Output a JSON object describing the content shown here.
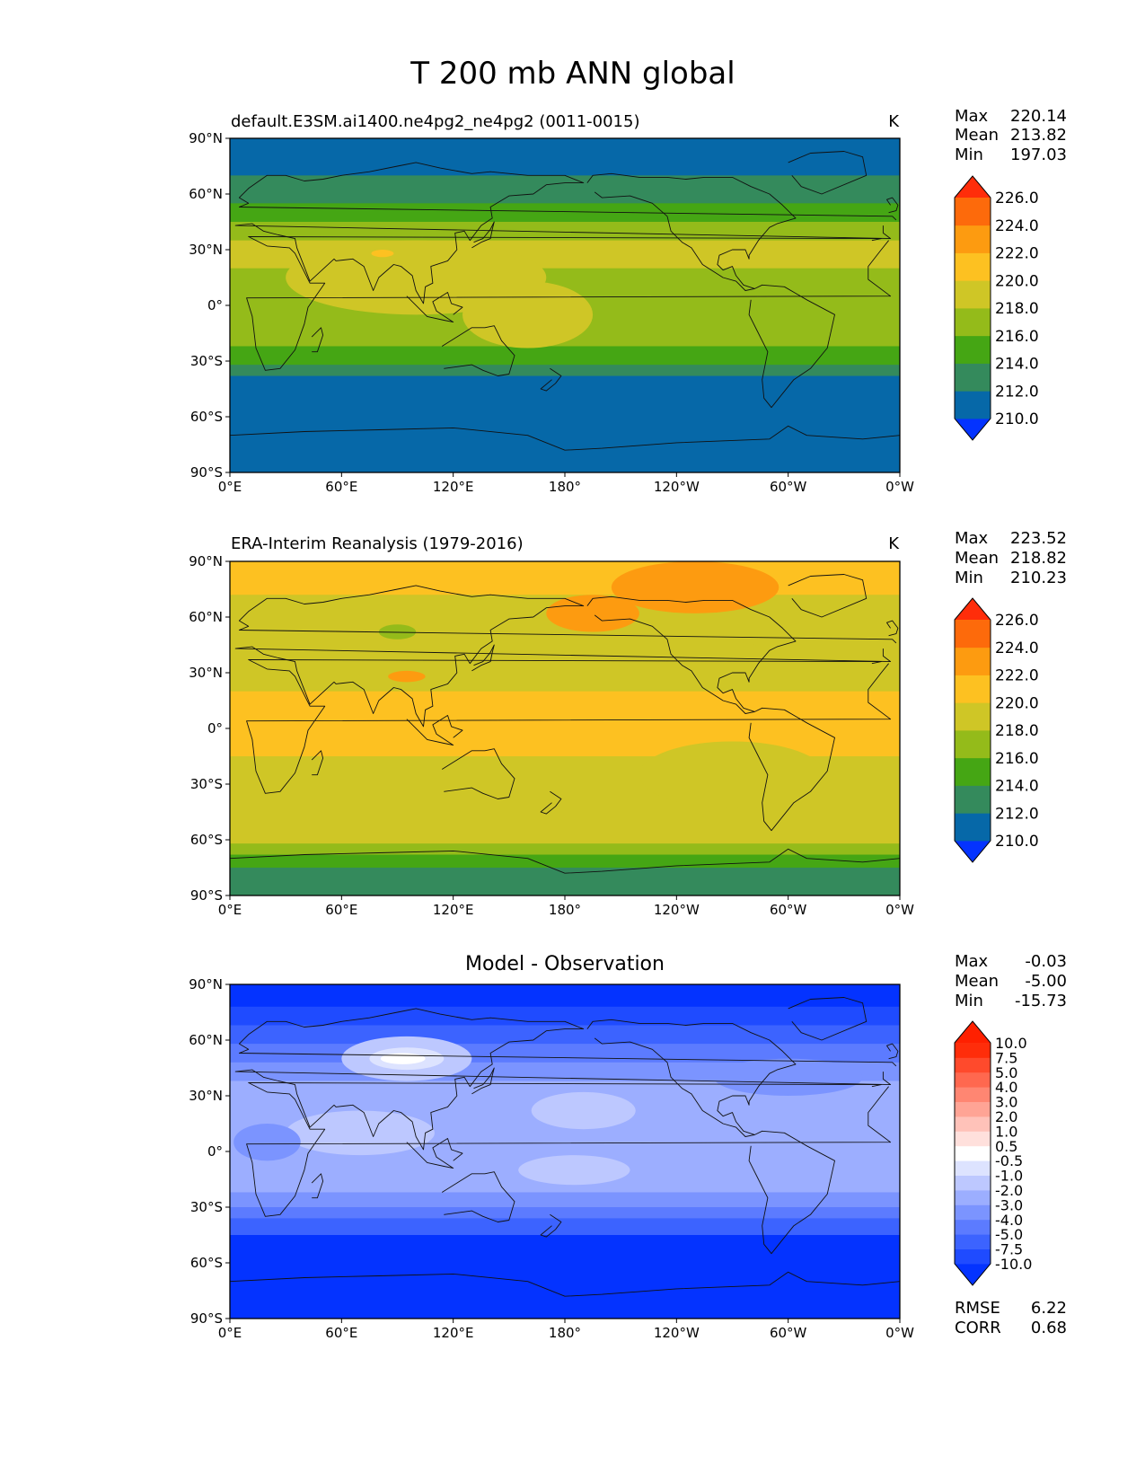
{
  "chart_data": {
    "type": "heatmap",
    "title": "T 200 mb ANN global",
    "x_ticks": [
      "0°E",
      "60°E",
      "120°E",
      "180°",
      "120°W",
      "60°W",
      "0°W"
    ],
    "y_ticks": [
      "90°N",
      "60°N",
      "30°N",
      "0°",
      "30°S",
      "60°S",
      "90°S"
    ],
    "xlim": [
      0,
      360
    ],
    "ylim": [
      -90,
      90
    ],
    "panels": [
      {
        "name": "test",
        "title_left": "default.E3SM.ai1400.ne4pg2_ne4pg2 (0011-0015)",
        "title_right": "K",
        "stats": {
          "labels": [
            "Max",
            "Mean",
            "Min"
          ],
          "values": [
            "220.14",
            "213.82",
            "197.03"
          ]
        },
        "colorbar": {
          "levels": [
            "210.0",
            "212.0",
            "214.0",
            "216.0",
            "218.0",
            "220.0",
            "222.0",
            "224.0",
            "226.0"
          ],
          "colors": [
            "#0433ff",
            "#0668a8",
            "#348a5c",
            "#45a614",
            "#94bb1a",
            "#cfc626",
            "#fdc121",
            "#fd9b10",
            "#fd6a0b",
            "#ff2d0a"
          ]
        },
        "bands": [
          {
            "from": 90,
            "to": 70,
            "value": 210
          },
          {
            "from": 70,
            "to": 55,
            "value": 212
          },
          {
            "from": 55,
            "to": 45,
            "value": 214
          },
          {
            "from": 45,
            "to": 35,
            "value": 216
          },
          {
            "from": 35,
            "to": 20,
            "value": 218
          },
          {
            "from": 20,
            "to": -10,
            "value": 217
          },
          {
            "from": -10,
            "to": -22,
            "value": 216
          },
          {
            "from": -22,
            "to": -32,
            "value": 214
          },
          {
            "from": -32,
            "to": -38,
            "value": 212
          },
          {
            "from": -38,
            "to": -90,
            "value": 210
          }
        ],
        "blobs": [
          {
            "lon": 100,
            "lat": 15,
            "rlon": 70,
            "rlat": 20,
            "value": 219
          },
          {
            "lon": 160,
            "lat": -5,
            "rlon": 35,
            "rlat": 18,
            "value": 219
          },
          {
            "lon": 82,
            "lat": 28,
            "rlon": 6,
            "rlat": 2,
            "value": 221
          }
        ]
      },
      {
        "name": "reference",
        "title_left": "ERA-Interim Reanalysis (1979-2016)",
        "title_right": "K",
        "stats": {
          "labels": [
            "Max",
            "Mean",
            "Min"
          ],
          "values": [
            "223.52",
            "218.82",
            "210.23"
          ]
        },
        "colorbar": {
          "levels": [
            "210.0",
            "212.0",
            "214.0",
            "216.0",
            "218.0",
            "220.0",
            "222.0",
            "224.0",
            "226.0"
          ],
          "colors": [
            "#0433ff",
            "#0668a8",
            "#348a5c",
            "#45a614",
            "#94bb1a",
            "#cfc626",
            "#fdc121",
            "#fd9b10",
            "#fd6a0b",
            "#ff2d0a"
          ]
        },
        "bands": [
          {
            "from": 90,
            "to": 72,
            "value": 220
          },
          {
            "from": 72,
            "to": 50,
            "value": 219
          },
          {
            "from": 50,
            "to": 38,
            "value": 218
          },
          {
            "from": 38,
            "to": 20,
            "value": 219
          },
          {
            "from": 20,
            "to": -15,
            "value": 220
          },
          {
            "from": -15,
            "to": -35,
            "value": 219
          },
          {
            "from": -35,
            "to": -62,
            "value": 218
          },
          {
            "from": -62,
            "to": -68,
            "value": 216
          },
          {
            "from": -68,
            "to": -75,
            "value": 214
          },
          {
            "from": -75,
            "to": -90,
            "value": 212
          }
        ],
        "blobs": [
          {
            "lon": 250,
            "lat": 76,
            "rlon": 45,
            "rlat": 14,
            "value": 222
          },
          {
            "lon": 195,
            "lat": 62,
            "rlon": 25,
            "rlat": 10,
            "value": 222
          },
          {
            "lon": 95,
            "lat": 28,
            "rlon": 10,
            "rlat": 3,
            "value": 222
          },
          {
            "lon": 90,
            "lat": 52,
            "rlon": 10,
            "rlat": 4,
            "value": 216
          },
          {
            "lon": 340,
            "lat": 40,
            "rlon": 25,
            "rlat": 8,
            "value": 216
          },
          {
            "lon": 250,
            "lat": 38,
            "rlon": 45,
            "rlat": 10,
            "value": 218
          },
          {
            "lon": 330,
            "lat": 45,
            "rlon": 40,
            "rlat": 15,
            "value": 218
          },
          {
            "lon": 270,
            "lat": -25,
            "rlon": 50,
            "rlat": 18,
            "value": 218
          }
        ]
      },
      {
        "name": "difference",
        "title_center": "Model - Observation",
        "stats": {
          "labels": [
            "Max",
            "Mean",
            "Min"
          ],
          "values": [
            "-0.03",
            "-5.00",
            "-15.73"
          ]
        },
        "colorbar": {
          "levels": [
            "-10.0",
            "-7.5",
            "-5.0",
            "-4.0",
            "-3.0",
            "-2.0",
            "-1.0",
            "-0.5",
            "0.5",
            "1.0",
            "2.0",
            "3.0",
            "4.0",
            "5.0",
            "7.5",
            "10.0"
          ],
          "colors": [
            "#0433ff",
            "#1f4bff",
            "#3c63ff",
            "#5c7bff",
            "#7b94ff",
            "#9caeff",
            "#bdc8ff",
            "#dde3ff",
            "#ffffff",
            "#ffe0dc",
            "#ffc2b9",
            "#ffa495",
            "#ff8672",
            "#ff684f",
            "#ff4a2c",
            "#ff2d0a",
            "#ff2000"
          ]
        },
        "bands": [
          {
            "from": 90,
            "to": 78,
            "value": -12
          },
          {
            "from": 78,
            "to": 68,
            "value": -8
          },
          {
            "from": 68,
            "to": 58,
            "value": -6
          },
          {
            "from": 58,
            "to": 48,
            "value": -4.5
          },
          {
            "from": 48,
            "to": 38,
            "value": -3.5
          },
          {
            "from": 38,
            "to": 25,
            "value": -2.5
          },
          {
            "from": 25,
            "to": -22,
            "value": -2.5
          },
          {
            "from": -22,
            "to": -30,
            "value": -3.5
          },
          {
            "from": -30,
            "to": -36,
            "value": -4.5
          },
          {
            "from": -36,
            "to": -45,
            "value": -6
          },
          {
            "from": -45,
            "to": -90,
            "value": -12
          }
        ],
        "blobs": [
          {
            "lon": 95,
            "lat": 50,
            "rlon": 35,
            "rlat": 12,
            "value": -1.5
          },
          {
            "lon": 95,
            "lat": 50,
            "rlon": 20,
            "rlat": 6,
            "value": -0.7
          },
          {
            "lon": 93,
            "lat": 50,
            "rlon": 12,
            "rlat": 3,
            "value": 0
          },
          {
            "lon": 190,
            "lat": 22,
            "rlon": 28,
            "rlat": 10,
            "value": -1.5
          },
          {
            "lon": 185,
            "lat": -10,
            "rlon": 30,
            "rlat": 8,
            "value": -1.5
          },
          {
            "lon": 70,
            "lat": 10,
            "rlon": 40,
            "rlat": 12,
            "value": -1.5
          },
          {
            "lon": 300,
            "lat": 40,
            "rlon": 40,
            "rlat": 10,
            "value": -3.5
          },
          {
            "lon": 20,
            "lat": 5,
            "rlon": 18,
            "rlat": 10,
            "value": -3.5
          },
          {
            "lon": 310,
            "lat": 20,
            "rlon": 35,
            "rlat": 10,
            "value": -2.5
          }
        ],
        "metrics": {
          "labels": [
            "RMSE",
            "CORR"
          ],
          "values": [
            "6.22",
            "0.68"
          ]
        }
      }
    ],
    "coastlines": true,
    "grid": false
  }
}
